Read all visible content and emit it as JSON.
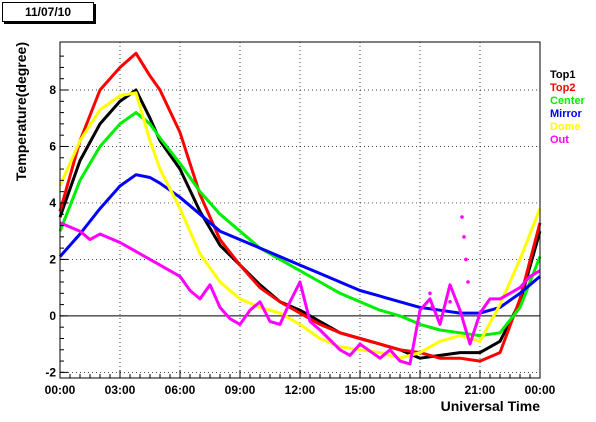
{
  "date_label": "11/07/10",
  "chart_data": {
    "type": "line",
    "xlabel": "Universal Time",
    "ylabel": "Temperature(degree)",
    "xlim": [
      0,
      24
    ],
    "ylim": [
      -2.2,
      9.7
    ],
    "x_ticks": [
      {
        "value": 0,
        "label": "00:00"
      },
      {
        "value": 3,
        "label": "03:00"
      },
      {
        "value": 6,
        "label": "06:00"
      },
      {
        "value": 9,
        "label": "09:00"
      },
      {
        "value": 12,
        "label": "12:00"
      },
      {
        "value": 15,
        "label": "15:00"
      },
      {
        "value": 18,
        "label": "18:00"
      },
      {
        "value": 21,
        "label": "21:00"
      },
      {
        "value": 24,
        "label": "00:00"
      }
    ],
    "y_ticks": [
      {
        "value": -2,
        "label": "-2"
      },
      {
        "value": 0,
        "label": "0"
      },
      {
        "value": 2,
        "label": "2"
      },
      {
        "value": 4,
        "label": "4"
      },
      {
        "value": 6,
        "label": "6"
      },
      {
        "value": 8,
        "label": "8"
      }
    ],
    "grid": true,
    "legend_position": "right",
    "series": [
      {
        "name": "Top1",
        "color": "#000000",
        "points": [
          [
            0,
            3.5
          ],
          [
            1,
            5.5
          ],
          [
            2,
            6.8
          ],
          [
            3,
            7.6
          ],
          [
            3.8,
            8.0
          ],
          [
            4.5,
            7.0
          ],
          [
            5,
            6.2
          ],
          [
            6,
            5.2
          ],
          [
            7,
            3.7
          ],
          [
            8,
            2.5
          ],
          [
            9,
            1.8
          ],
          [
            10,
            1.1
          ],
          [
            11,
            0.5
          ],
          [
            12,
            0.2
          ],
          [
            13,
            -0.2
          ],
          [
            14,
            -0.6
          ],
          [
            15,
            -0.8
          ],
          [
            16,
            -1.0
          ],
          [
            17,
            -1.2
          ],
          [
            18,
            -1.5
          ],
          [
            19,
            -1.4
          ],
          [
            20,
            -1.3
          ],
          [
            21,
            -1.3
          ],
          [
            22,
            -0.9
          ],
          [
            23,
            0.5
          ],
          [
            24,
            3.0
          ]
        ]
      },
      {
        "name": "Top2",
        "color": "#ff0000",
        "points": [
          [
            0,
            3.7
          ],
          [
            1,
            6.2
          ],
          [
            2,
            8.0
          ],
          [
            3,
            8.8
          ],
          [
            3.8,
            9.3
          ],
          [
            4.5,
            8.5
          ],
          [
            5,
            8.0
          ],
          [
            6,
            6.5
          ],
          [
            7,
            4.3
          ],
          [
            8,
            2.7
          ],
          [
            9,
            1.8
          ],
          [
            10,
            1.0
          ],
          [
            11,
            0.5
          ],
          [
            12,
            0.1
          ],
          [
            13,
            -0.3
          ],
          [
            14,
            -0.6
          ],
          [
            15,
            -0.8
          ],
          [
            16,
            -1.0
          ],
          [
            17,
            -1.2
          ],
          [
            18,
            -1.3
          ],
          [
            19,
            -1.5
          ],
          [
            20,
            -1.5
          ],
          [
            21,
            -1.6
          ],
          [
            22,
            -1.3
          ],
          [
            23,
            0.6
          ],
          [
            24,
            3.3
          ]
        ]
      },
      {
        "name": "Center",
        "color": "#00ee00",
        "points": [
          [
            0,
            3.0
          ],
          [
            1,
            4.8
          ],
          [
            2,
            6.0
          ],
          [
            3,
            6.8
          ],
          [
            3.8,
            7.2
          ],
          [
            4.5,
            6.8
          ],
          [
            5,
            6.3
          ],
          [
            6,
            5.4
          ],
          [
            7,
            4.4
          ],
          [
            8,
            3.6
          ],
          [
            9,
            3.0
          ],
          [
            10,
            2.4
          ],
          [
            11,
            2.0
          ],
          [
            12,
            1.6
          ],
          [
            13,
            1.2
          ],
          [
            14,
            0.8
          ],
          [
            15,
            0.5
          ],
          [
            16,
            0.2
          ],
          [
            17,
            0.0
          ],
          [
            18,
            -0.3
          ],
          [
            19,
            -0.5
          ],
          [
            20,
            -0.6
          ],
          [
            21,
            -0.7
          ],
          [
            22,
            -0.6
          ],
          [
            23,
            0.3
          ],
          [
            24,
            2.1
          ]
        ]
      },
      {
        "name": "Mirror",
        "color": "#0000ff",
        "points": [
          [
            0,
            2.1
          ],
          [
            1,
            2.9
          ],
          [
            2,
            3.8
          ],
          [
            3,
            4.6
          ],
          [
            3.8,
            5.0
          ],
          [
            4.5,
            4.9
          ],
          [
            5,
            4.7
          ],
          [
            6,
            4.2
          ],
          [
            7,
            3.6
          ],
          [
            8,
            3.0
          ],
          [
            9,
            2.7
          ],
          [
            10,
            2.4
          ],
          [
            11,
            2.1
          ],
          [
            12,
            1.8
          ],
          [
            13,
            1.5
          ],
          [
            14,
            1.2
          ],
          [
            15,
            0.9
          ],
          [
            16,
            0.7
          ],
          [
            17,
            0.5
          ],
          [
            18,
            0.3
          ],
          [
            19,
            0.2
          ],
          [
            20,
            0.1
          ],
          [
            21,
            0.1
          ],
          [
            22,
            0.3
          ],
          [
            23,
            0.8
          ],
          [
            24,
            1.4
          ]
        ]
      },
      {
        "name": "Dome",
        "color": "#ffff00",
        "points": [
          [
            0,
            4.6
          ],
          [
            1,
            6.2
          ],
          [
            2,
            7.3
          ],
          [
            3,
            7.8
          ],
          [
            3.8,
            7.9
          ],
          [
            4.5,
            6.2
          ],
          [
            5,
            5.2
          ],
          [
            6,
            3.8
          ],
          [
            7,
            2.2
          ],
          [
            8,
            1.2
          ],
          [
            9,
            0.6
          ],
          [
            10,
            0.3
          ],
          [
            11,
            0.1
          ],
          [
            12,
            -0.3
          ],
          [
            13,
            -0.8
          ],
          [
            14,
            -1.1
          ],
          [
            15,
            -1.2
          ],
          [
            16,
            -1.3
          ],
          [
            17,
            -1.5
          ],
          [
            18,
            -1.3
          ],
          [
            19,
            -0.9
          ],
          [
            20,
            -0.7
          ],
          [
            21,
            -0.9
          ],
          [
            22,
            0.4
          ],
          [
            23,
            2.0
          ],
          [
            24,
            3.8
          ]
        ]
      },
      {
        "name": "Out",
        "color": "#ff00ff",
        "points": [
          [
            0,
            3.3
          ],
          [
            1,
            3.0
          ],
          [
            1.5,
            2.7
          ],
          [
            2,
            2.9
          ],
          [
            3,
            2.6
          ],
          [
            3.5,
            2.4
          ],
          [
            4,
            2.2
          ],
          [
            5,
            1.8
          ],
          [
            6,
            1.4
          ],
          [
            6.5,
            0.9
          ],
          [
            7,
            0.6
          ],
          [
            7.5,
            1.1
          ],
          [
            8,
            0.3
          ],
          [
            8.5,
            -0.1
          ],
          [
            9,
            -0.3
          ],
          [
            9.5,
            0.2
          ],
          [
            10,
            0.5
          ],
          [
            10.5,
            -0.2
          ],
          [
            11,
            -0.3
          ],
          [
            11.5,
            0.5
          ],
          [
            12,
            1.2
          ],
          [
            12.5,
            -0.2
          ],
          [
            13,
            -0.5
          ],
          [
            14,
            -1.2
          ],
          [
            14.5,
            -1.4
          ],
          [
            15,
            -1.0
          ],
          [
            16,
            -1.5
          ],
          [
            16.5,
            -1.2
          ],
          [
            17,
            -1.6
          ],
          [
            17.5,
            -1.7
          ],
          [
            18,
            0.2
          ],
          [
            18.5,
            0.6
          ],
          [
            19,
            -0.3
          ],
          [
            19.5,
            1.1
          ],
          [
            20,
            0.2
          ],
          [
            20.5,
            -1.0
          ],
          [
            21,
            0.1
          ],
          [
            21.5,
            0.6
          ],
          [
            22,
            0.6
          ],
          [
            22.5,
            0.8
          ],
          [
            23,
            1.0
          ],
          [
            23.5,
            1.4
          ],
          [
            24,
            1.6
          ]
        ]
      }
    ],
    "markers": [
      {
        "color": "#ff00ff",
        "points": [
          [
            20.1,
            3.5
          ],
          [
            20.2,
            2.8
          ],
          [
            20.3,
            2.0
          ],
          [
            20.4,
            1.2
          ],
          [
            18.5,
            0.8
          ],
          [
            18.6,
            0.3
          ],
          [
            19.5,
            0.5
          ]
        ]
      }
    ]
  }
}
